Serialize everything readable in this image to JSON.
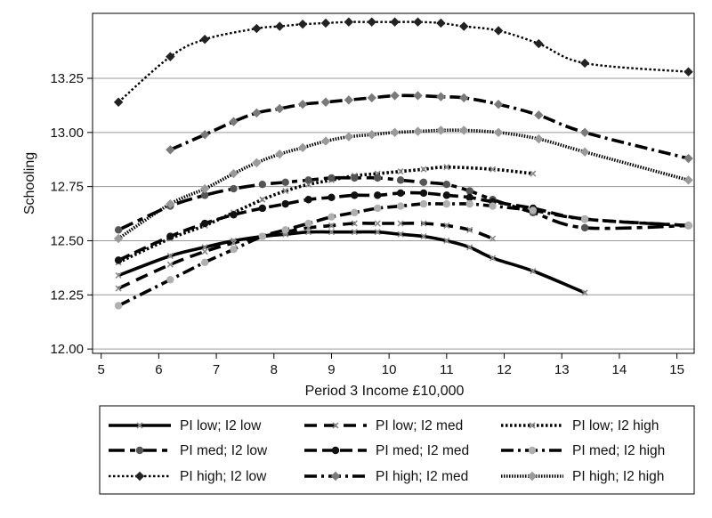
{
  "chart_data": {
    "type": "line",
    "title": "",
    "xlabel": "Period 3 Income £10,000",
    "ylabel": "Schooling",
    "xlim": [
      4.85,
      15.3
    ],
    "ylim": [
      11.98,
      13.55
    ],
    "xticks": [
      5,
      6,
      7,
      8,
      9,
      10,
      11,
      12,
      13,
      14,
      15
    ],
    "yticks": [
      12.0,
      12.25,
      12.5,
      12.75,
      13.0,
      13.25
    ],
    "ytick_labels": [
      "12.00",
      "12.25",
      "12.50",
      "12.75",
      "13.00",
      "13.25"
    ],
    "grid": "horizontal",
    "legend_position": "bottom",
    "legend_columns": 3,
    "series": [
      {
        "name": "PI low; I2 low",
        "dash": "",
        "width": 3.6,
        "marker": "x",
        "marker_color": "#8a8a8a",
        "x": [
          5.3,
          6.2,
          6.8,
          7.3,
          7.8,
          8.2,
          8.6,
          9.0,
          9.4,
          9.8,
          10.2,
          10.6,
          11.0,
          11.4,
          11.8,
          12.5,
          13.4
        ],
        "y": [
          12.34,
          12.43,
          12.47,
          12.5,
          12.52,
          12.53,
          12.54,
          12.54,
          12.54,
          12.54,
          12.53,
          12.52,
          12.5,
          12.47,
          12.42,
          12.36,
          12.26
        ]
      },
      {
        "name": "PI low; I2 med",
        "dash": "14 8",
        "width": 3.6,
        "marker": "x",
        "marker_color": "#8a8a8a",
        "x": [
          5.3,
          6.2,
          6.8,
          7.3,
          7.8,
          8.2,
          8.6,
          9.0,
          9.4,
          9.8,
          10.2,
          10.6,
          11.0,
          11.4,
          11.8
        ],
        "y": [
          12.28,
          12.39,
          12.45,
          12.49,
          12.52,
          12.54,
          12.56,
          12.57,
          12.58,
          12.58,
          12.58,
          12.58,
          12.57,
          12.55,
          12.51
        ]
      },
      {
        "name": "PI low; I2 high",
        "dash": "2.5 2.5",
        "width": 3.6,
        "marker": "x",
        "marker_color": "#8a8a8a",
        "x": [
          5.3,
          6.2,
          6.8,
          7.3,
          7.8,
          8.2,
          8.6,
          9.0,
          9.4,
          9.8,
          10.2,
          10.6,
          11.0,
          11.8,
          12.5
        ],
        "y": [
          12.4,
          12.51,
          12.57,
          12.63,
          12.69,
          12.73,
          12.76,
          12.78,
          12.8,
          12.81,
          12.82,
          12.83,
          12.84,
          12.83,
          12.81
        ]
      },
      {
        "name": "PI med; I2 low",
        "dash": "18 6 6 6",
        "width": 3.6,
        "marker": "circle",
        "marker_color": "#555555",
        "x": [
          5.3,
          6.2,
          6.8,
          7.3,
          7.8,
          8.2,
          8.6,
          9.0,
          9.4,
          9.8,
          10.2,
          10.6,
          11.0,
          11.4,
          11.8,
          12.5,
          13.4,
          15.2
        ],
        "y": [
          12.55,
          12.66,
          12.71,
          12.74,
          12.76,
          12.77,
          12.78,
          12.79,
          12.79,
          12.79,
          12.78,
          12.77,
          12.76,
          12.73,
          12.69,
          12.63,
          12.56,
          12.57
        ]
      },
      {
        "name": "PI med; I2 med",
        "dash": "14 6",
        "width": 3.6,
        "marker": "circle",
        "marker_color": "#111111",
        "x": [
          5.3,
          6.2,
          6.8,
          7.3,
          7.8,
          8.2,
          8.6,
          9.0,
          9.4,
          9.8,
          10.2,
          10.6,
          11.0,
          11.4,
          11.8,
          12.5,
          13.4,
          15.2
        ],
        "y": [
          12.41,
          12.52,
          12.58,
          12.62,
          12.65,
          12.67,
          12.69,
          12.7,
          12.71,
          12.71,
          12.72,
          12.72,
          12.71,
          12.7,
          12.68,
          12.65,
          12.6,
          12.57
        ]
      },
      {
        "name": "PI med; I2 high",
        "dash": "14 5 3 5",
        "width": 3.6,
        "marker": "circle",
        "marker_color": "#b0b0b0",
        "x": [
          5.3,
          6.2,
          6.8,
          7.3,
          7.8,
          8.2,
          8.6,
          9.0,
          9.4,
          9.8,
          10.2,
          10.6,
          11.0,
          11.4,
          11.8,
          12.5,
          13.4,
          15.2
        ],
        "y": [
          12.2,
          12.32,
          12.4,
          12.46,
          12.52,
          12.55,
          12.58,
          12.61,
          12.63,
          12.65,
          12.66,
          12.67,
          12.67,
          12.67,
          12.66,
          12.64,
          12.6,
          12.57
        ]
      },
      {
        "name": "PI high; I2 low",
        "dash": "2.5 2.5",
        "width": 2.4,
        "marker": "diamond",
        "marker_color": "#222222",
        "x": [
          5.3,
          6.2,
          6.8,
          7.7,
          8.1,
          8.5,
          8.9,
          9.3,
          9.7,
          10.1,
          10.5,
          10.9,
          11.3,
          11.9,
          12.6,
          13.4,
          15.2
        ],
        "y": [
          13.14,
          13.35,
          13.43,
          13.48,
          13.49,
          13.5,
          13.505,
          13.51,
          13.51,
          13.51,
          13.51,
          13.505,
          13.49,
          13.47,
          13.41,
          13.32,
          13.28
        ]
      },
      {
        "name": "PI high; I2 med",
        "dash": "14 5 3 5",
        "width": 3.6,
        "marker": "diamond",
        "marker_color": "#7a7a7a",
        "x": [
          6.2,
          6.8,
          7.3,
          7.7,
          8.1,
          8.5,
          8.9,
          9.3,
          9.7,
          10.1,
          10.5,
          10.9,
          11.3,
          11.9,
          12.6,
          13.4,
          15.2
        ],
        "y": [
          12.92,
          12.99,
          13.05,
          13.09,
          13.11,
          13.13,
          13.14,
          13.15,
          13.16,
          13.17,
          13.17,
          13.165,
          13.16,
          13.13,
          13.08,
          13.0,
          12.88
        ]
      },
      {
        "name": "PI high; I2 high",
        "dash": "1.5 1.5",
        "width": 3.6,
        "marker": "diamond",
        "marker_color": "#9a9a9a",
        "x": [
          5.3,
          6.2,
          6.8,
          7.3,
          7.7,
          8.1,
          8.5,
          8.9,
          9.3,
          9.7,
          10.1,
          10.5,
          10.9,
          11.3,
          11.9,
          12.6,
          13.4,
          15.2
        ],
        "y": [
          12.51,
          12.67,
          12.74,
          12.81,
          12.86,
          12.9,
          12.93,
          12.96,
          12.98,
          12.99,
          13.0,
          13.005,
          13.01,
          13.01,
          13.0,
          12.97,
          12.91,
          12.78
        ]
      }
    ]
  }
}
